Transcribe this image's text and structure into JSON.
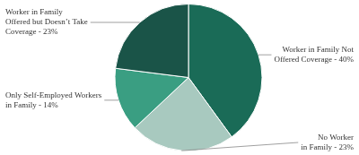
{
  "chart_data": {
    "type": "pie",
    "categories": [
      "Worker in Family Not\nOffered Coverage - 40%",
      "No Worker\nin Family - 23%",
      "Only Self-Employed Workers\nin Family - 14%",
      "Worker in Family\nOffered but Doesn’t Take\nCoverage - 23%"
    ],
    "values": [
      40,
      23,
      14,
      23
    ],
    "colors": [
      "#1a6b57",
      "#a8c9bf",
      "#3a9e82",
      "#1a5448"
    ]
  }
}
